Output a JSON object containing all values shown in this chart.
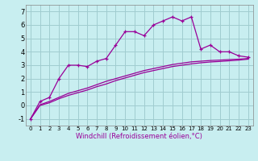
{
  "xlabel": "Windchill (Refroidissement éolien,°C)",
  "bg_color": "#c8eef0",
  "grid_color": "#a0ccd0",
  "line_color": "#990099",
  "x_main": [
    0,
    1,
    2,
    3,
    4,
    5,
    6,
    7,
    8,
    9,
    10,
    11,
    12,
    13,
    14,
    15,
    16,
    17,
    18,
    19,
    20,
    21,
    22,
    23
  ],
  "y_main": [
    -1.0,
    0.3,
    0.6,
    2.0,
    3.0,
    3.0,
    2.9,
    3.3,
    3.5,
    4.5,
    5.5,
    5.5,
    5.2,
    6.0,
    6.3,
    6.6,
    6.3,
    6.6,
    4.2,
    4.5,
    4.0,
    4.0,
    3.7,
    3.6
  ],
  "y_line2": [
    -1.0,
    0.05,
    0.3,
    0.6,
    0.9,
    1.1,
    1.3,
    1.55,
    1.8,
    2.0,
    2.2,
    2.4,
    2.6,
    2.75,
    2.9,
    3.05,
    3.15,
    3.25,
    3.3,
    3.35,
    3.38,
    3.42,
    3.45,
    3.5
  ],
  "y_line3": [
    -1.0,
    0.0,
    0.2,
    0.5,
    0.75,
    0.95,
    1.15,
    1.4,
    1.6,
    1.85,
    2.05,
    2.25,
    2.45,
    2.6,
    2.75,
    2.9,
    3.0,
    3.1,
    3.18,
    3.24,
    3.28,
    3.33,
    3.38,
    3.45
  ],
  "ylim": [
    -1.5,
    7.5
  ],
  "xlim": [
    -0.5,
    23.5
  ],
  "yticks": [
    -1,
    0,
    1,
    2,
    3,
    4,
    5,
    6,
    7
  ],
  "xticks": [
    0,
    1,
    2,
    3,
    4,
    5,
    6,
    7,
    8,
    9,
    10,
    11,
    12,
    13,
    14,
    15,
    16,
    17,
    18,
    19,
    20,
    21,
    22,
    23
  ]
}
